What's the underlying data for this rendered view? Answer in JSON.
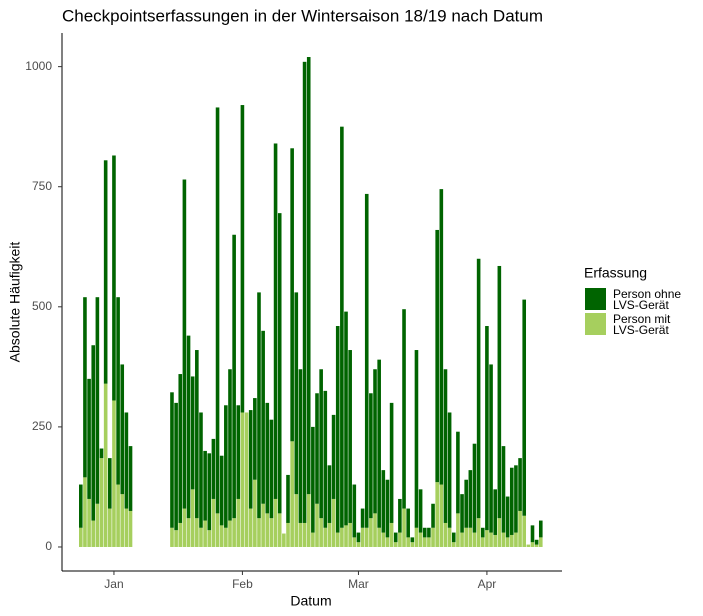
{
  "chart_data": {
    "type": "stacked_bar",
    "title": "Checkpointserfassungen in der Wintersaison 18/19 nach Datum",
    "x_label": "Datum",
    "y_label": "Absolute Häufigkeit",
    "legend_title": "Erfassung",
    "legend": "right",
    "categories": [
      null,
      null,
      null,
      null,
      null,
      null,
      null,
      null,
      "Jan",
      null,
      null,
      null,
      null,
      null,
      null,
      null,
      null,
      null,
      null,
      null,
      null,
      null,
      null,
      null,
      null,
      null,
      null,
      null,
      null,
      null,
      null,
      null,
      null,
      null,
      null,
      null,
      null,
      null,
      null,
      "Feb",
      null,
      null,
      null,
      null,
      null,
      null,
      null,
      null,
      null,
      null,
      null,
      null,
      null,
      null,
      null,
      null,
      null,
      null,
      null,
      null,
      null,
      null,
      null,
      null,
      null,
      null,
      null,
      "Mar",
      null,
      null,
      null,
      null,
      null,
      null,
      null,
      null,
      null,
      null,
      null,
      null,
      null,
      null,
      null,
      null,
      null,
      null,
      null,
      null,
      null,
      null,
      null,
      null,
      null,
      null,
      null,
      null,
      null,
      null,
      "Apr",
      null,
      null,
      null,
      null,
      null,
      null,
      null,
      null,
      null,
      null,
      null,
      null,
      null
    ],
    "series": [
      {
        "name": "Person ohne LVS-Gerät",
        "color": "#006400",
        "values": [
          90,
          375,
          250,
          365,
          430,
          20,
          465,
          105,
          510,
          390,
          270,
          200,
          135,
          null,
          null,
          null,
          null,
          null,
          null,
          null,
          null,
          null,
          282,
          265,
          310,
          685,
          380,
          235,
          350,
          240,
          145,
          160,
          125,
          845,
          145,
          255,
          315,
          590,
          195,
          640,
          0,
          205,
          170,
          470,
          360,
          230,
          205,
          740,
          625,
          0,
          100,
          610,
          420,
          320,
          960,
          910,
          220,
          230,
          310,
          285,
          120,
          175,
          430,
          835,
          445,
          360,
          110,
          20,
          40,
          695,
          260,
          300,
          350,
          130,
          120,
          250,
          20,
          70,
          415,
          60,
          10,
          370,
          90,
          20,
          20,
          50,
          525,
          615,
          320,
          240,
          20,
          170,
          80,
          100,
          120,
          185,
          540,
          20,
          425,
          350,
          95,
          525,
          180,
          85,
          140,
          140,
          110,
          450,
          0,
          35,
          10,
          35
        ]
      },
      {
        "name": "Person mit LVS-Gerät",
        "color": "#a6cf5e",
        "values": [
          40,
          145,
          100,
          55,
          90,
          185,
          340,
          80,
          305,
          130,
          110,
          80,
          75,
          null,
          null,
          null,
          null,
          null,
          null,
          null,
          null,
          null,
          40,
          35,
          50,
          80,
          60,
          120,
          60,
          40,
          55,
          35,
          100,
          70,
          45,
          40,
          55,
          60,
          100,
          280,
          280,
          80,
          140,
          60,
          90,
          70,
          60,
          100,
          70,
          28,
          50,
          220,
          110,
          50,
          50,
          110,
          30,
          90,
          60,
          40,
          50,
          100,
          30,
          40,
          45,
          50,
          20,
          10,
          40,
          40,
          60,
          70,
          40,
          30,
          20,
          50,
          10,
          30,
          80,
          20,
          10,
          40,
          30,
          20,
          20,
          40,
          135,
          130,
          50,
          40,
          10,
          70,
          30,
          40,
          40,
          30,
          60,
          20,
          35,
          30,
          25,
          60,
          30,
          20,
          25,
          30,
          75,
          65,
          5,
          10,
          5,
          20
        ]
      }
    ],
    "ylim": [
      -50,
      1070
    ],
    "yticks": [
      0,
      250,
      500,
      750,
      1000
    ],
    "grid": false
  }
}
